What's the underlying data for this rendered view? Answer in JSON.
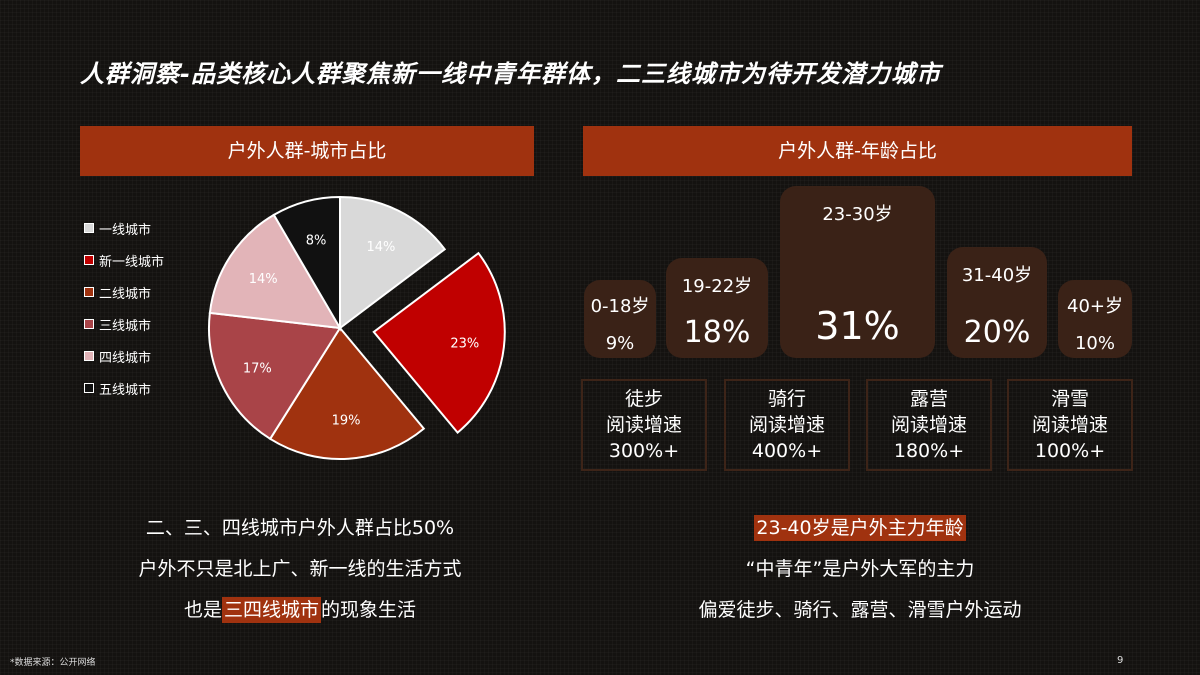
{
  "title": "人群洞察-品类核心人群聚焦新一线中青年群体，二三线城市为待开发潜力城市",
  "left_bar": "户外人群-城市占比",
  "right_bar": "户外人群-年龄占比",
  "chart_data": [
    {
      "type": "pie",
      "title": "户外人群-城市占比",
      "categories": [
        "一线城市",
        "新一线城市",
        "二线城市",
        "三线城市",
        "四线城市",
        "五线城市"
      ],
      "values": [
        14,
        23,
        19,
        17,
        14,
        8
      ],
      "labels": [
        "14%",
        "23%",
        "19%",
        "17%",
        "14%",
        "8%"
      ],
      "colors": [
        "#d9d9d9",
        "#c00000",
        "#a0320f",
        "#a94448",
        "#e2b4b8",
        "#111111"
      ],
      "exploded": [
        false,
        true,
        false,
        false,
        false,
        false
      ],
      "legend_position": "left"
    },
    {
      "type": "bar",
      "title": "户外人群-年龄占比",
      "categories": [
        "0-18岁",
        "19-22岁",
        "23-30岁",
        "31-40岁",
        "40+岁"
      ],
      "values": [
        9,
        18,
        31,
        20,
        10
      ],
      "labels": [
        "9%",
        "18%",
        "31%",
        "20%",
        "10%"
      ]
    }
  ],
  "activities": [
    {
      "name": "徒步",
      "metric": "阅读增速",
      "value": "300%+"
    },
    {
      "name": "骑行",
      "metric": "阅读增速",
      "value": "400%+"
    },
    {
      "name": "露营",
      "metric": "阅读增速",
      "value": "180%+"
    },
    {
      "name": "滑雪",
      "metric": "阅读增速",
      "value": "100%+"
    }
  ],
  "left_caption": {
    "line1": "二、三、四线城市户外人群占比50%",
    "line2": "户外不只是北上广、新一线的生活方式",
    "line3_pre": "也是",
    "line3_hl": "三四线城市",
    "line3_post": "的现象生活"
  },
  "right_caption": {
    "line1": "23-40岁是户外主力年龄",
    "line2": "“中青年”是户外大军的主力",
    "line3": "偏爱徒步、骑行、露营、滑雪户外运动"
  },
  "footnote": "*数据来源：公开网络",
  "page_number": "9"
}
